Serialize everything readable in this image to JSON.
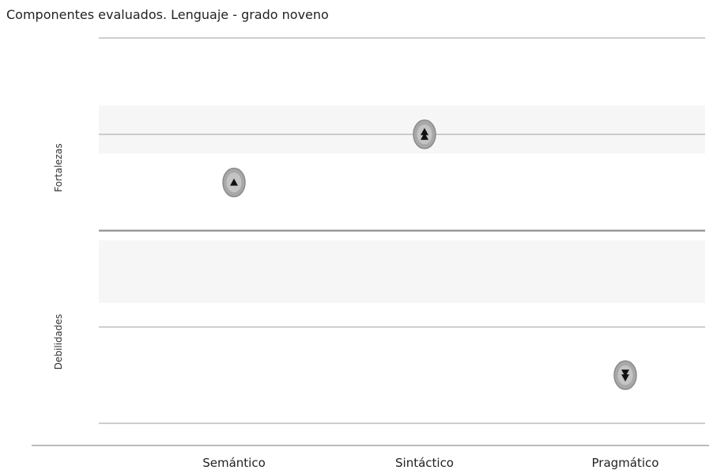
{
  "chart_data": {
    "type": "scatter",
    "title": "Componentes evaluados. Lenguaje - grado noveno",
    "categories": [
      "Semántico",
      "Sintáctico",
      "Pragmático"
    ],
    "y_bands": [
      "Fortalezas",
      "Debilidades"
    ],
    "ylim": [
      -4,
      4
    ],
    "points": [
      {
        "category": "Semántico",
        "y": 1.0,
        "marker": "triangle-up",
        "band": "Fortalezas"
      },
      {
        "category": "Sintáctico",
        "y": 2.0,
        "marker": "double-triangle-up",
        "band": "Fortalezas"
      },
      {
        "category": "Pragmático",
        "y": -3.0,
        "marker": "double-triangle-down",
        "band": "Debilidades"
      }
    ],
    "gridlines": [
      4,
      2,
      0,
      -2,
      -4
    ],
    "grid": true,
    "legend": "none",
    "colors": {
      "marker_fill": "#a8a8a8",
      "marker_glyph": "#111111",
      "gridline": "#bdbdbd",
      "center_line": "#909090",
      "band_shade": "#f6f6f6"
    }
  }
}
